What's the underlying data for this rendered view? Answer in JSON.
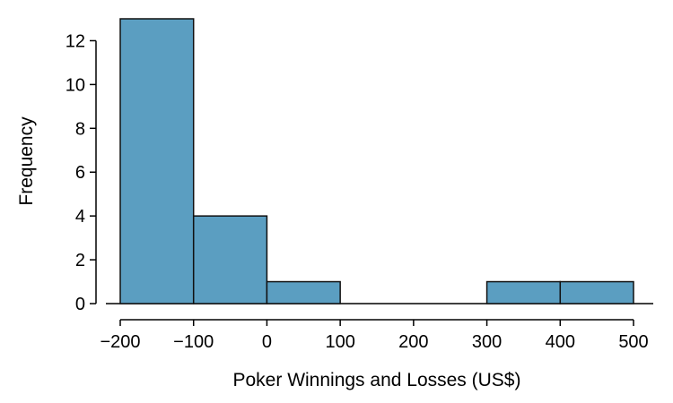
{
  "chart_data": {
    "type": "histogram",
    "xlabel": "Poker Winnings and Losses (US$)",
    "ylabel": "Frequency",
    "bins": [
      {
        "start": -200,
        "end": -100,
        "count": 13
      },
      {
        "start": -100,
        "end": 0,
        "count": 4
      },
      {
        "start": 0,
        "end": 100,
        "count": 1
      },
      {
        "start": 100,
        "end": 200,
        "count": 0
      },
      {
        "start": 200,
        "end": 300,
        "count": 0
      },
      {
        "start": 300,
        "end": 400,
        "count": 1
      },
      {
        "start": 400,
        "end": 500,
        "count": 1
      }
    ],
    "xlim": [
      -200,
      500
    ],
    "ylim": [
      0,
      13
    ],
    "xticks": [
      -200,
      -100,
      0,
      100,
      200,
      300,
      400,
      500
    ],
    "xtick_labels": [
      "−200",
      "−100",
      "0",
      "100",
      "200",
      "300",
      "400",
      "500"
    ],
    "yticks": [
      0,
      2,
      4,
      6,
      8,
      10,
      12
    ],
    "yticks_labels": [
      "0",
      "2",
      "4",
      "6",
      "8",
      "10",
      "12"
    ],
    "bar_color": "#5b9ec1",
    "grid": false
  }
}
